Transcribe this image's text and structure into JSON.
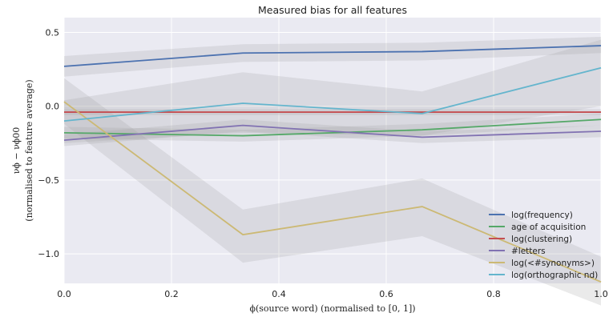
{
  "chart_data": {
    "type": "line",
    "title": "Measured bias for all features",
    "xlabel": "ϕ(source word) (normalised to [0, 1])",
    "ylabel_math": "νϕ − νϕ00",
    "ylabel": "(normalised to feature average)",
    "xlim": [
      0,
      1
    ],
    "ylim": [
      -1.2,
      0.6
    ],
    "x_ticks": [
      "0.0",
      "0.2",
      "0.4",
      "0.6",
      "0.8",
      "1.0"
    ],
    "y_ticks": [
      "0.5",
      "0.0",
      "−0.5",
      "−1.0"
    ],
    "grid": true,
    "legend_position": "lower-right",
    "series": [
      {
        "name": "log(frequency)",
        "color": "#4c72b0",
        "x": [
          0,
          0.333,
          0.667,
          1.0
        ],
        "y": [
          0.27,
          0.36,
          0.37,
          0.41
        ],
        "lower": [
          0.2,
          0.3,
          0.31,
          0.36
        ],
        "upper": [
          0.34,
          0.42,
          0.43,
          0.47
        ]
      },
      {
        "name": "age of acquisition",
        "color": "#55a868",
        "x": [
          0,
          0.333,
          0.667,
          1.0
        ],
        "y": [
          -0.18,
          -0.2,
          -0.16,
          -0.09
        ],
        "lower": [
          -0.22,
          -0.24,
          -0.2,
          -0.13
        ],
        "upper": [
          -0.14,
          -0.16,
          -0.12,
          -0.05
        ]
      },
      {
        "name": "log(clustering)",
        "color": "#c44e52",
        "x": [
          0,
          0.333,
          0.667,
          1.0
        ],
        "y": [
          -0.04,
          -0.04,
          -0.04,
          -0.04
        ],
        "lower": [
          -0.06,
          -0.06,
          -0.06,
          -0.06
        ],
        "upper": [
          -0.02,
          -0.02,
          -0.02,
          -0.02
        ]
      },
      {
        "name": "#letters",
        "color": "#8172b2",
        "x": [
          0,
          0.333,
          0.667,
          1.0
        ],
        "y": [
          -0.23,
          -0.13,
          -0.21,
          -0.17
        ],
        "lower": [
          -0.27,
          -0.17,
          -0.25,
          -0.21
        ],
        "upper": [
          -0.19,
          -0.09,
          -0.17,
          -0.13
        ]
      },
      {
        "name": "log(<#synonyms>)",
        "color": "#ccb974",
        "x": [
          0,
          0.333,
          0.667,
          1.0
        ],
        "y": [
          0.03,
          -0.87,
          -0.68,
          -1.19
        ],
        "lower": [
          -0.12,
          -1.06,
          -0.88,
          -1.35
        ],
        "upper": [
          0.19,
          -0.7,
          -0.49,
          -1.02
        ]
      },
      {
        "name": "log(orthographic nd)",
        "color": "#64b5cd",
        "x": [
          0,
          0.333,
          0.667,
          1.0
        ],
        "y": [
          -0.1,
          0.02,
          -0.05,
          0.26
        ],
        "lower": [
          -0.25,
          -0.18,
          -0.2,
          0.0
        ],
        "upper": [
          0.04,
          0.23,
          0.1,
          0.45
        ]
      }
    ]
  }
}
